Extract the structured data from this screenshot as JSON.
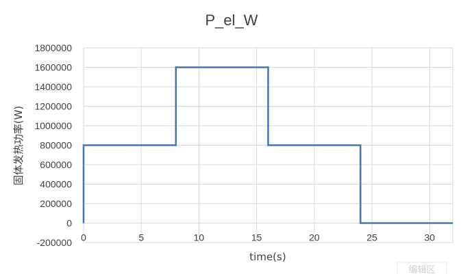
{
  "chart_data": {
    "type": "line",
    "title": "P_el_W",
    "xlabel": "time(s)",
    "ylabel": "固体发热功率(W)",
    "xlim": [
      0,
      32
    ],
    "ylim": [
      -200000,
      1800000
    ],
    "x_ticks": [
      0,
      5,
      10,
      15,
      20,
      25,
      30
    ],
    "y_ticks": [
      -200000,
      0,
      200000,
      400000,
      600000,
      800000,
      1000000,
      1200000,
      1400000,
      1600000,
      1800000
    ],
    "grid": true,
    "legend": "none",
    "series": [
      {
        "color": "#4472c4",
        "x": [
          0,
          0,
          8,
          8,
          16,
          16,
          24,
          24,
          32
        ],
        "y": [
          0,
          800000,
          800000,
          1600000,
          1600000,
          800000,
          800000,
          0,
          0
        ]
      }
    ]
  },
  "watermark": {
    "text": "编辑区"
  }
}
